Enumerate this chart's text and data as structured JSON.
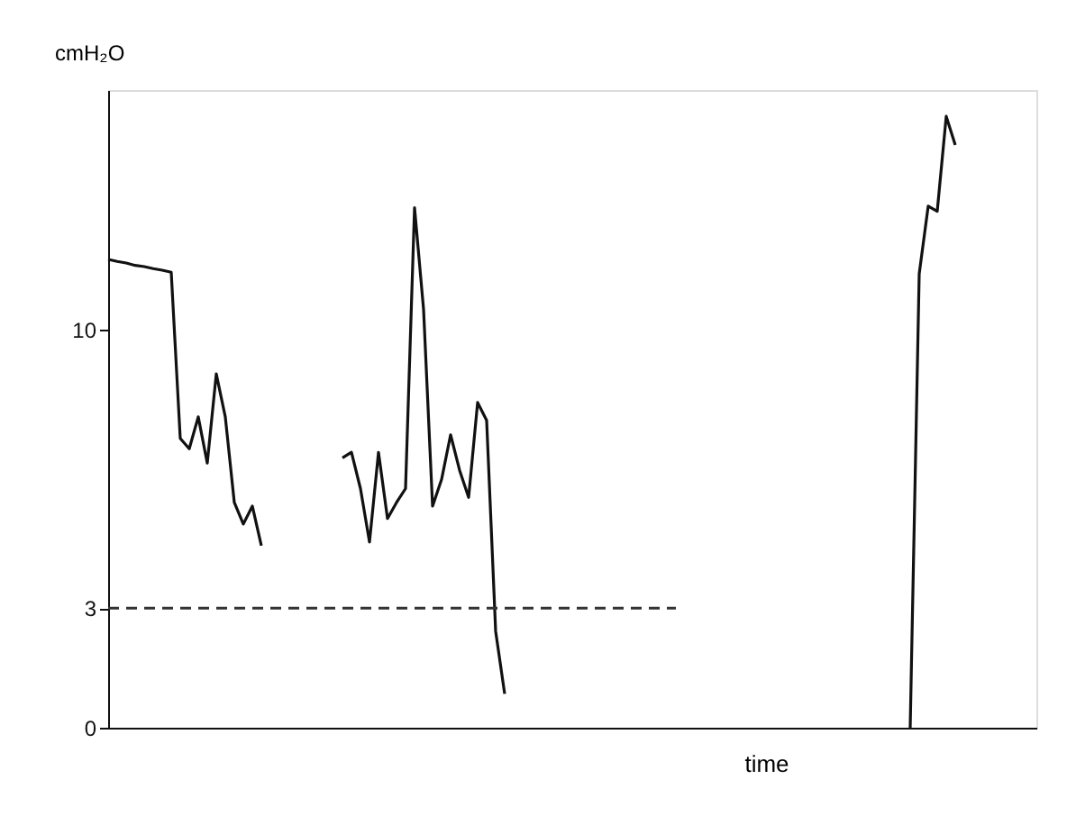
{
  "chart_data": {
    "type": "line",
    "xlabel": "time",
    "ylabel": "cmH₂O",
    "tick_labels": "y",
    "categories": [
      null,
      null,
      null,
      null,
      null,
      null,
      null,
      null,
      null,
      null,
      null,
      null,
      null,
      null,
      null,
      null,
      null,
      null,
      null,
      null,
      null,
      null,
      null,
      null,
      null,
      null,
      null,
      null,
      null,
      null,
      null,
      null,
      null,
      null,
      null,
      null,
      null,
      null,
      null,
      null,
      null,
      null,
      null,
      null,
      null,
      null,
      null,
      null,
      null,
      null,
      null,
      null,
      null,
      null,
      null,
      null,
      null,
      null,
      null,
      null,
      null,
      null,
      null,
      null,
      null,
      null,
      null,
      null,
      null,
      null,
      null,
      null,
      null,
      null,
      null,
      null,
      null,
      null,
      null,
      null,
      null,
      null,
      null,
      null,
      null,
      null,
      null,
      null,
      null,
      null,
      null,
      null,
      null,
      null,
      null,
      null,
      null,
      null,
      null,
      null,
      null,
      null,
      null,
      null
    ],
    "ylim": [
      0,
      16
    ],
    "yticks": [
      0,
      3,
      10
    ],
    "series": [
      {
        "color": "#111111",
        "line_style": "solid",
        "values": [
          11.75,
          11.7,
          11.66,
          11.6,
          11.57,
          11.52,
          11.48,
          11.43,
          7.26,
          7.0,
          7.8,
          6.64,
          8.88,
          7.8,
          5.65,
          5.11,
          5.56,
          4.57,
          null,
          null,
          null,
          null,
          null,
          null,
          null,
          null,
          null,
          null,
          null,
          null,
          null,
          null,
          null,
          null,
          null,
          null,
          null,
          null,
          null,
          null,
          null,
          null,
          null,
          null,
          null,
          null,
          null,
          null,
          null,
          null,
          null,
          null,
          null,
          null,
          null,
          null,
          null,
          null,
          null,
          null,
          null,
          null,
          null,
          null,
          null,
          null,
          null,
          null,
          null,
          null,
          null,
          null,
          null,
          null,
          null,
          null,
          null,
          null,
          null,
          null,
          null,
          null,
          null,
          null,
          null,
          null,
          null,
          null,
          null,
          null,
          null,
          null,
          null,
          null,
          null,
          null,
          null,
          null,
          null,
          null,
          null,
          null,
          null,
          null
        ]
      },
      {
        "color": "#111111",
        "line_style": "solid",
        "values": [
          null,
          null,
          null,
          null,
          null,
          null,
          null,
          null,
          null,
          null,
          null,
          null,
          null,
          null,
          null,
          null,
          null,
          null,
          null,
          null,
          null,
          null,
          null,
          null,
          null,
          null,
          6.77,
          6.91,
          6.0,
          4.66,
          6.91,
          5.25,
          5.65,
          6.0,
          13.05,
          10.5,
          5.56,
          6.23,
          7.35,
          6.46,
          5.78,
          8.16,
          7.71,
          2.42,
          0.85,
          null,
          null,
          null,
          null,
          null,
          null,
          null,
          null,
          null,
          null,
          null,
          null,
          null,
          null,
          null,
          null,
          null,
          null,
          null,
          null,
          null,
          null,
          null,
          null,
          null,
          null,
          null,
          null,
          null,
          null,
          null,
          null,
          null,
          null,
          null,
          null,
          null,
          null,
          null,
          null,
          null,
          null,
          null,
          null,
          null,
          null,
          null,
          null,
          null,
          null,
          null,
          null,
          null,
          null,
          null,
          null,
          null,
          null,
          null
        ]
      },
      {
        "color": "#111111",
        "line_style": "solid",
        "values": [
          null,
          null,
          null,
          null,
          null,
          null,
          null,
          null,
          null,
          null,
          null,
          null,
          null,
          null,
          null,
          null,
          null,
          null,
          null,
          null,
          null,
          null,
          null,
          null,
          null,
          null,
          null,
          null,
          null,
          null,
          null,
          null,
          null,
          null,
          null,
          null,
          null,
          null,
          null,
          null,
          null,
          null,
          null,
          null,
          null,
          null,
          null,
          null,
          null,
          null,
          null,
          null,
          null,
          null,
          null,
          null,
          null,
          null,
          null,
          null,
          null,
          null,
          null,
          null,
          null,
          null,
          null,
          null,
          null,
          null,
          null,
          null,
          null,
          null,
          null,
          null,
          null,
          null,
          null,
          null,
          null,
          null,
          null,
          null,
          null,
          null,
          null,
          null,
          null,
          0,
          11.39,
          13.09,
          12.96,
          15.34,
          14.62,
          null,
          null,
          null,
          null,
          null,
          null,
          null,
          null,
          null
        ]
      },
      {
        "color": "#333333",
        "line_style": "dashed",
        "values": [
          3,
          3,
          3,
          3,
          3,
          3,
          3,
          3,
          3,
          3,
          3,
          3,
          3,
          3,
          3,
          3,
          3,
          3,
          3,
          3,
          3,
          3,
          3,
          3,
          3,
          3,
          3,
          3,
          3,
          3,
          3,
          3,
          3,
          3,
          3,
          3,
          3,
          3,
          3,
          3,
          3,
          3,
          3,
          3,
          3,
          3,
          3,
          3,
          3,
          3,
          3,
          3,
          3,
          3,
          3,
          3,
          3,
          3,
          3,
          3,
          3,
          3,
          3,
          3,
          null,
          null,
          null,
          null,
          null,
          null,
          null,
          null,
          null,
          null,
          null,
          null,
          null,
          null,
          null,
          null,
          null,
          null,
          null,
          null,
          null,
          null,
          null,
          null,
          null,
          null,
          null,
          null,
          null,
          null,
          null,
          null,
          null,
          null,
          null,
          null,
          null,
          null,
          null,
          null
        ]
      }
    ]
  }
}
